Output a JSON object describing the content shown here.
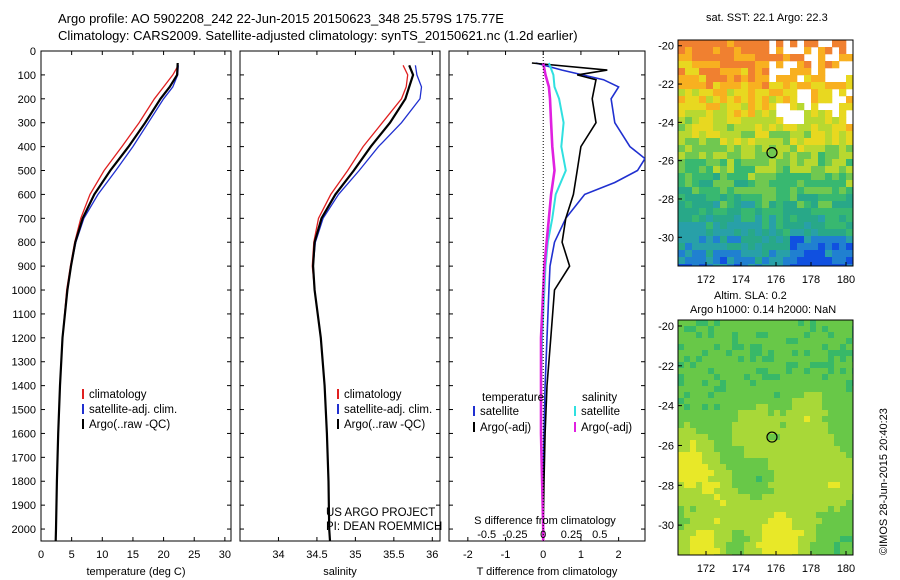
{
  "header": {
    "line1": "Argo profile: AO 5902208_242 22-Jun-2015 20150623_348 25.579S 175.77E",
    "line2": "Climatology: CARS2009. Satellite-adjusted climatology: synTS_20150621.nc (1.2d earlier)"
  },
  "colors": {
    "climatology": "#e02020",
    "satellite": "#2030d0",
    "argo": "#000000",
    "salinity_sat": "#30e0e0",
    "salinity_argo": "#e020e0"
  },
  "chart_data": [
    {
      "type": "line",
      "id": "temperature",
      "xlabel": "temperature (deg C)",
      "ylabel": "",
      "xlim": [
        0,
        31
      ],
      "ylim": [
        2050,
        0
      ],
      "xticks": [
        0,
        5,
        10,
        15,
        20,
        25,
        30
      ],
      "yticks": [
        0,
        100,
        200,
        300,
        400,
        500,
        600,
        700,
        800,
        900,
        1000,
        1100,
        1200,
        1300,
        1400,
        1500,
        1600,
        1700,
        1800,
        1900,
        2000
      ],
      "legend": [
        "climatology",
        "satellite-adj. clim.",
        "Argo(..raw -QC)"
      ],
      "series": [
        {
          "name": "climatology",
          "depth": [
            60,
            100,
            150,
            200,
            300,
            400,
            500,
            600,
            700,
            800,
            900,
            1000,
            1200,
            1400,
            1600,
            1800,
            2000,
            2050
          ],
          "values": [
            22.4,
            21.5,
            20,
            18.5,
            16,
            13.2,
            10.3,
            8,
            6.5,
            5.5,
            4.8,
            4.2,
            3.5,
            3.1,
            2.8,
            2.6,
            2.45,
            2.4
          ]
        },
        {
          "name": "satellite-adj. clim.",
          "depth": [
            60,
            100,
            150,
            200,
            300,
            400,
            500,
            600,
            700,
            800,
            900,
            1000,
            1200,
            1400,
            1600,
            1800,
            2000,
            2050
          ],
          "values": [
            22.4,
            22.3,
            21.5,
            20,
            17.5,
            15,
            12.2,
            9.3,
            7,
            5.7,
            4.9,
            4.3,
            3.5,
            3.1,
            2.8,
            2.6,
            2.45,
            2.4
          ]
        },
        {
          "name": "Argo(..raw -QC)",
          "depth": [
            50,
            100,
            150,
            200,
            300,
            400,
            500,
            600,
            700,
            800,
            900,
            1000,
            1200,
            1400,
            1600,
            1800,
            2000,
            2050
          ],
          "values": [
            22.3,
            22.2,
            21,
            19.5,
            17,
            14.3,
            11.3,
            8.7,
            6.8,
            5.6,
            4.9,
            4.3,
            3.5,
            3.1,
            2.8,
            2.6,
            2.45,
            2.4
          ]
        }
      ]
    },
    {
      "type": "line",
      "id": "salinity",
      "xlabel": "salinity",
      "xlim": [
        33.5,
        36.1
      ],
      "ylim": [
        2050,
        0
      ],
      "xticks": [
        34,
        34.5,
        35,
        35.5,
        36
      ],
      "legend": [
        "climatology",
        "satellite-adj. clim.",
        "Argo(..raw -QC)"
      ],
      "annotation": [
        "US ARGO PROJECT",
        "PI: DEAN ROEMMICH"
      ],
      "series": [
        {
          "name": "climatology",
          "depth": [
            60,
            100,
            150,
            200,
            300,
            400,
            500,
            600,
            700,
            800,
            900,
            1000,
            1200,
            1400,
            1600,
            1800,
            2000,
            2050
          ],
          "values": [
            35.62,
            35.68,
            35.66,
            35.6,
            35.35,
            35.1,
            34.9,
            34.68,
            34.52,
            34.46,
            34.44,
            34.47,
            34.55,
            34.6,
            34.63,
            34.65,
            34.66,
            34.67
          ]
        },
        {
          "name": "satellite-adj. clim.",
          "depth": [
            60,
            100,
            150,
            200,
            300,
            400,
            500,
            600,
            700,
            800,
            900,
            1000,
            1200,
            1400,
            1600,
            1800,
            2000,
            2050
          ],
          "values": [
            35.78,
            35.8,
            35.86,
            35.84,
            35.6,
            35.3,
            35.05,
            34.78,
            34.58,
            34.48,
            34.45,
            34.47,
            34.55,
            34.6,
            34.63,
            34.65,
            34.66,
            34.67
          ]
        },
        {
          "name": "Argo(..raw -QC)",
          "depth": [
            60,
            100,
            150,
            200,
            300,
            400,
            500,
            600,
            700,
            800,
            900,
            1000,
            1200,
            1400,
            1600,
            1800,
            2000,
            2050
          ],
          "values": [
            35.7,
            35.75,
            35.7,
            35.65,
            35.45,
            35.2,
            34.98,
            34.74,
            34.56,
            34.47,
            34.45,
            34.47,
            34.55,
            34.6,
            34.63,
            34.65,
            34.66,
            34.67
          ]
        }
      ]
    },
    {
      "type": "line",
      "id": "difference",
      "xlabel": "T difference from climatology",
      "xlabel2": "S difference from climatology",
      "xlim": [
        -2.5,
        2.7
      ],
      "ylim": [
        2050,
        0
      ],
      "xticks": [
        -2,
        -1,
        0,
        1,
        2
      ],
      "xticks_s": [
        -0.5,
        -0.25,
        0,
        0.25,
        0.5
      ],
      "xticks_s_labels": [
        "-0.5",
        "-0.25",
        "0",
        "0.25",
        "0.5"
      ],
      "legend_titles": [
        "temperature",
        "salinity"
      ],
      "legend": [
        "satellite",
        "Argo(-adj)",
        "satellite",
        "Argo(-adj)"
      ],
      "series": [
        {
          "name": "satellite",
          "kind": "temperature",
          "depth": [
            50,
            80,
            120,
            150,
            200,
            300,
            400,
            450,
            500,
            550,
            600,
            700,
            800,
            900,
            1000,
            1200,
            1400,
            1600,
            1800,
            2000,
            2050
          ],
          "values": [
            -0.2,
            0.5,
            1.6,
            2,
            1.8,
            1.9,
            2.3,
            2.7,
            2.5,
            1.9,
            1.1,
            0.6,
            0.3,
            0.18,
            0.15,
            0.1,
            0.05,
            0.02,
            0.0,
            0.0,
            0.0
          ]
        },
        {
          "name": "Argo(-adj)",
          "kind": "temperature",
          "depth": [
            50,
            80,
            100,
            120,
            200,
            300,
            400,
            500,
            600,
            700,
            800,
            900,
            1000,
            1200,
            1400,
            1600,
            1800,
            2000,
            2050
          ],
          "values": [
            -0.3,
            1.7,
            0.9,
            1.4,
            1.3,
            1.4,
            1.0,
            0.9,
            0.8,
            0.6,
            0.5,
            0.7,
            0.3,
            0.2,
            0.1,
            0.05,
            0.02,
            0.0,
            0.0
          ]
        },
        {
          "name": "satellite",
          "kind": "salinity",
          "depth": [
            50,
            100,
            150,
            200,
            300,
            400,
            500,
            600,
            700,
            800,
            900,
            1000,
            1200,
            1400,
            1600,
            1800,
            2000,
            2050
          ],
          "values": [
            0.05,
            0.09,
            0.1,
            0.14,
            0.18,
            0.16,
            0.2,
            0.11,
            0.08,
            0.04,
            0.02,
            0.01,
            -0.01,
            -0.02,
            -0.02,
            -0.01,
            0.0,
            0.0
          ]
        },
        {
          "name": "Argo(-adj)",
          "kind": "salinity",
          "depth": [
            50,
            100,
            150,
            200,
            300,
            400,
            500,
            600,
            700,
            800,
            900,
            1000,
            1200,
            1400,
            1600,
            1800,
            2000,
            2050
          ],
          "values": [
            0.0,
            0.02,
            0.05,
            0.06,
            0.07,
            0.08,
            0.1,
            0.07,
            0.05,
            0.03,
            0.01,
            0.0,
            -0.02,
            -0.02,
            -0.02,
            -0.01,
            0.0,
            0.0
          ]
        }
      ]
    },
    {
      "type": "heatmap",
      "id": "sst-map",
      "title": "sat. SST: 22.1  Argo: 22.3",
      "xlim": [
        170.4,
        180.4
      ],
      "ylim": [
        -31.5,
        -19.7
      ],
      "xticks": [
        172,
        174,
        176,
        178,
        180
      ],
      "yticks": [
        -20,
        -22,
        -24,
        -26,
        -28,
        -30
      ],
      "marker": {
        "lon": 175.77,
        "lat": -25.579
      }
    },
    {
      "type": "heatmap",
      "id": "sla-map",
      "title": "Altim. SLA: 0.2",
      "subtitle": "Argo h1000: 0.14 h2000: NaN",
      "xlim": [
        170.4,
        180.4
      ],
      "ylim": [
        -31.5,
        -19.7
      ],
      "xticks": [
        172,
        174,
        176,
        178,
        180
      ],
      "yticks": [
        -20,
        -22,
        -24,
        -26,
        -28,
        -30
      ],
      "marker": {
        "lon": 175.77,
        "lat": -25.579
      }
    }
  ],
  "credit": "©IMOS 28-Jun-2015 20:40:23"
}
